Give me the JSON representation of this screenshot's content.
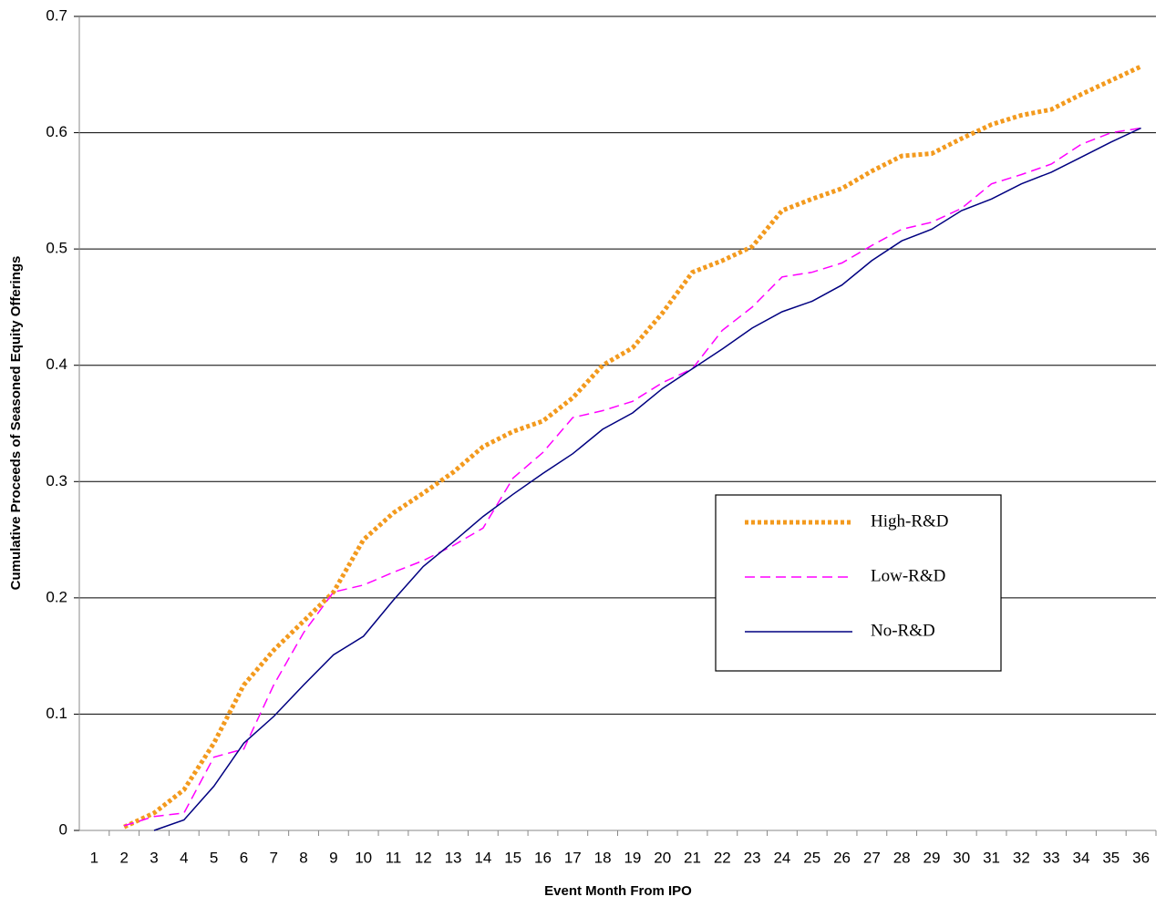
{
  "chart_data": {
    "type": "line",
    "x_label": "Event Month From IPO",
    "y_label": "Cumulative Proceeds of Seasoned Equity Offerings",
    "categories": [
      "1",
      "2",
      "3",
      "4",
      "5",
      "6",
      "7",
      "8",
      "9",
      "10",
      "11",
      "12",
      "13",
      "14",
      "15",
      "16",
      "17",
      "18",
      "19",
      "20",
      "21",
      "22",
      "23",
      "24",
      "25",
      "26",
      "27",
      "28",
      "29",
      "30",
      "31",
      "32",
      "33",
      "34",
      "35",
      "36"
    ],
    "series": [
      {
        "name": "High-R&D",
        "color": "#f39a1e",
        "style": "dotted",
        "values": [
          null,
          0.003,
          0.015,
          0.035,
          0.075,
          0.125,
          0.155,
          0.18,
          0.205,
          0.25,
          0.273,
          0.29,
          0.308,
          0.33,
          0.343,
          0.352,
          0.372,
          0.4,
          0.415,
          0.445,
          0.48,
          0.49,
          0.502,
          0.533,
          0.543,
          0.552,
          0.567,
          0.58,
          0.582,
          0.595,
          0.607,
          0.615,
          0.62,
          0.633,
          0.645,
          0.657
        ]
      },
      {
        "name": "Low-R&D",
        "color": "#ff00ff",
        "style": "dashed",
        "values": [
          null,
          0.004,
          0.012,
          0.015,
          0.063,
          0.07,
          0.125,
          0.17,
          0.205,
          0.211,
          0.222,
          0.232,
          0.245,
          0.26,
          0.303,
          0.325,
          0.355,
          0.361,
          0.369,
          0.385,
          0.397,
          0.43,
          0.45,
          0.476,
          0.48,
          0.488,
          0.503,
          0.517,
          0.523,
          0.535,
          0.556,
          0.564,
          0.573,
          0.59,
          0.6,
          0.604
        ]
      },
      {
        "name": "No-R&D",
        "color": "#000080",
        "style": "solid",
        "values": [
          null,
          null,
          0,
          0.009,
          0.038,
          0.075,
          0.098,
          0.125,
          0.151,
          0.167,
          0.198,
          0.227,
          0.248,
          0.27,
          0.289,
          0.307,
          0.324,
          0.345,
          0.359,
          0.38,
          0.397,
          0.414,
          0.432,
          0.446,
          0.455,
          0.469,
          0.49,
          0.507,
          0.517,
          0.533,
          0.543,
          0.556,
          0.566,
          0.579,
          0.592,
          0.604
        ]
      }
    ],
    "ylim": [
      0,
      0.7
    ],
    "yticks": [
      0,
      0.1,
      0.2,
      0.3,
      0.4,
      0.5,
      0.6,
      0.7
    ],
    "grid": true,
    "legend": "center-right"
  }
}
